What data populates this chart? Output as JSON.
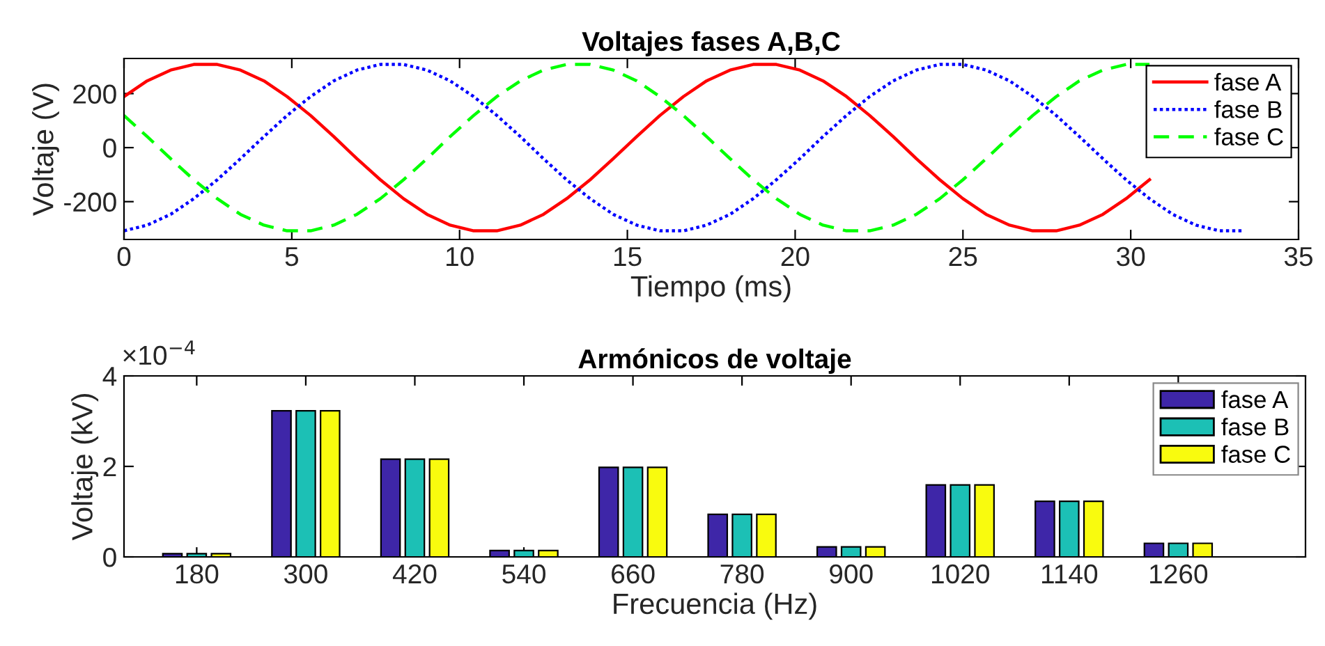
{
  "chart_data": [
    {
      "type": "line",
      "title": "Voltajes fases A,B,C",
      "xlabel": "Tiempo (ms)",
      "ylabel": "Voltaje (V)",
      "x": [
        0,
        0.69,
        1.39,
        2.08,
        2.78,
        3.47,
        4.17,
        4.86,
        5.56,
        6.25,
        6.94,
        7.64,
        8.33,
        9.03,
        9.72,
        10.42,
        11.11,
        11.81,
        12.5,
        13.19,
        13.89,
        14.58,
        15.28,
        15.97,
        16.67,
        17.36,
        18.06,
        18.75,
        19.44,
        20.14,
        20.83,
        21.53,
        22.22,
        22.92,
        23.61,
        24.31,
        25,
        25.69,
        26.39,
        27.08,
        27.78,
        28.47,
        29.17,
        29.86,
        30.56,
        31.25,
        31.94,
        32.64,
        33.33
      ],
      "series": [
        {
          "name": "fase A",
          "color": "#ff0000",
          "line_style": "solid",
          "values": [
            189,
            247,
            287,
            308,
            308,
            287,
            247,
            189,
            119,
            41,
            -41,
            -119,
            -189,
            -247,
            -287,
            -308,
            -308,
            -287,
            -247,
            -189,
            -119,
            -41,
            41,
            119,
            189,
            247,
            287,
            308,
            308,
            287,
            247,
            189,
            119,
            41,
            -41,
            -119,
            -189,
            -247,
            -287,
            -308,
            -308,
            -287,
            -247,
            -189,
            -119,
            null,
            null,
            null,
            null
          ]
        },
        {
          "name": "fase B",
          "color": "#0000ff",
          "line_style": "dotted",
          "values": [
            -308,
            -287,
            -247,
            -189,
            -119,
            -41,
            41,
            119,
            189,
            247,
            287,
            308,
            308,
            287,
            247,
            189,
            119,
            41,
            -41,
            -119,
            -189,
            -247,
            -287,
            -308,
            -308,
            -287,
            -247,
            -189,
            -119,
            -41,
            41,
            119,
            189,
            247,
            287,
            308,
            308,
            287,
            247,
            189,
            119,
            41,
            -41,
            -119,
            -189,
            -247,
            -287,
            -308,
            -308
          ]
        },
        {
          "name": "fase C",
          "color": "#00ff00",
          "line_style": "dashed",
          "values": [
            119,
            41,
            -41,
            -119,
            -189,
            -247,
            -287,
            -308,
            -308,
            -287,
            -247,
            -189,
            -119,
            -41,
            41,
            119,
            189,
            247,
            287,
            308,
            308,
            287,
            247,
            189,
            119,
            41,
            -41,
            -119,
            -189,
            -247,
            -287,
            -308,
            -308,
            -287,
            -247,
            -189,
            -119,
            -41,
            41,
            119,
            189,
            247,
            287,
            308,
            308,
            null,
            null,
            null,
            null
          ]
        }
      ],
      "xlim": [
        0,
        35
      ],
      "xticks": [
        0,
        5,
        10,
        15,
        20,
        25,
        30,
        35
      ],
      "ylim": [
        -340,
        330
      ],
      "yticks": [
        -200,
        0,
        200
      ],
      "grid": false,
      "legend": "top right",
      "marker": "none"
    },
    {
      "type": "bar",
      "title": "Armónicos de voltaje",
      "xlabel": "Frecuencia (Hz)",
      "ylabel": "Voltaje (kV)",
      "x": [
        180,
        300,
        420,
        540,
        660,
        780,
        900,
        1020,
        1140,
        1260
      ],
      "series": [
        {
          "name": "fase A",
          "color": "#3e26a8",
          "values": [
            0.07,
            3.23,
            2.16,
            0.14,
            1.98,
            0.94,
            0.22,
            1.59,
            1.23,
            0.3
          ]
        },
        {
          "name": "fase B",
          "color": "#1cc0b5",
          "values": [
            0.07,
            3.23,
            2.16,
            0.14,
            1.98,
            0.94,
            0.22,
            1.59,
            1.23,
            0.3
          ]
        },
        {
          "name": "fase C",
          "color": "#f9fb0e",
          "values": [
            0.07,
            3.23,
            2.16,
            0.14,
            1.98,
            0.94,
            0.22,
            1.59,
            1.23,
            0.3
          ]
        }
      ],
      "xlim": [
        100,
        1400
      ],
      "xticks": [
        180,
        300,
        420,
        540,
        660,
        780,
        900,
        1020,
        1140,
        1260
      ],
      "ylim": [
        0,
        4
      ],
      "yticks": [
        0,
        2,
        4
      ],
      "annotations": [
        "×10$^{−4}$"
      ],
      "grid": false,
      "legend": "top right"
    }
  ]
}
